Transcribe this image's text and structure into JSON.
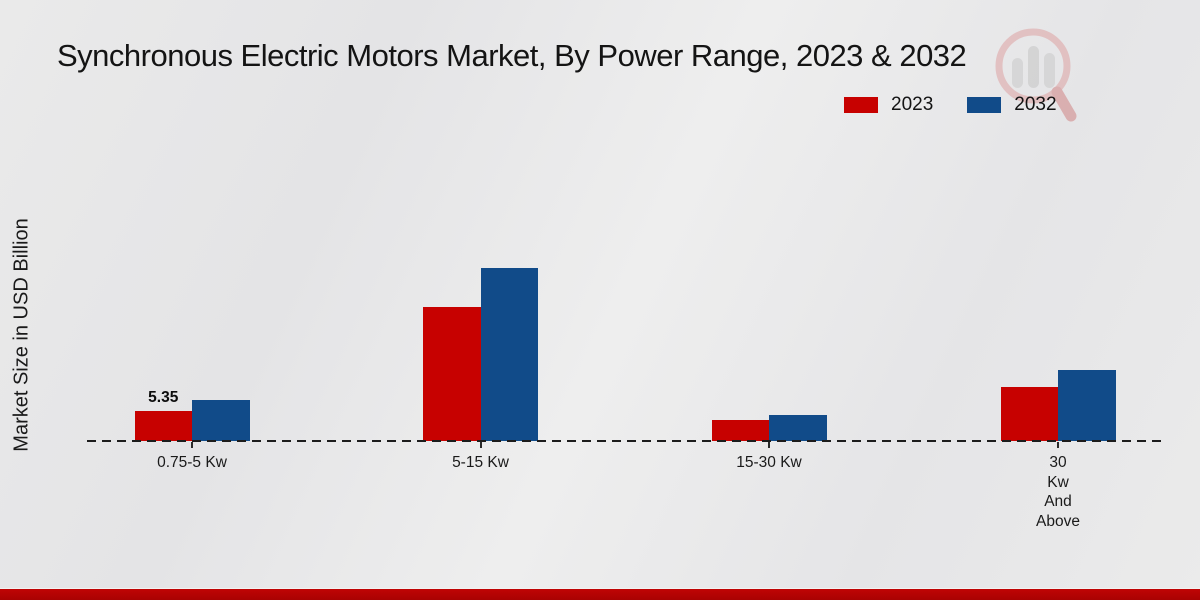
{
  "title": "Synchronous Electric Motors Market, By Power Range, 2023 & 2032",
  "ylabel": "Market Size in USD Billion",
  "legend": [
    {
      "label": "2023",
      "color": "#c70100"
    },
    {
      "label": "2032",
      "color": "#114b89"
    }
  ],
  "chart_data": {
    "type": "bar",
    "title": "Synchronous Electric Motors Market, By Power Range, 2023 & 2032",
    "xlabel": "",
    "ylabel": "Market Size in USD Billion",
    "ylim": [
      0,
      35
    ],
    "grid": false,
    "legend_position": "top-right",
    "baseline_style": "dashed",
    "y_axis_ticks_visible": false,
    "categories": [
      "0.75-5 Kw",
      "5-15 Kw",
      "15-30 Kw",
      "30 Kw And Above"
    ],
    "category_label_lines": [
      [
        "0.75-5 Kw"
      ],
      [
        "5-15 Kw"
      ],
      [
        "15-30 Kw"
      ],
      [
        "30",
        "Kw",
        "And",
        "Above"
      ]
    ],
    "series": [
      {
        "name": "2023",
        "color": "#c70100",
        "values": [
          5.35,
          23.9,
          3.7,
          9.6
        ]
      },
      {
        "name": "2032",
        "color": "#114b89",
        "values": [
          7.3,
          30.8,
          4.6,
          12.7
        ]
      }
    ],
    "value_labels": [
      {
        "series": "2023",
        "category_index": 0,
        "text": "5.35"
      }
    ]
  },
  "watermark": {
    "icon": "magnifier-bar-chart-logo"
  },
  "footer": {
    "color_top": "#c00404",
    "color_bottom": "#a80202"
  }
}
